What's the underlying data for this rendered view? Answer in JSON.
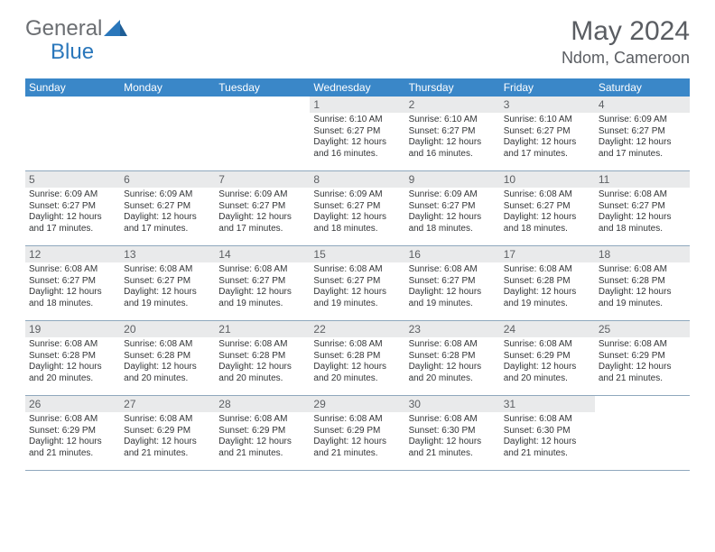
{
  "brand": {
    "text_general": "General",
    "text_blue": "Blue",
    "logo_color": "#2a77bb",
    "text_color_gray": "#6b6e72"
  },
  "title": {
    "month_year": "May 2024",
    "location": "Ndom, Cameroon",
    "title_fontsize": 30,
    "location_fontsize": 18,
    "color": "#5a5d62"
  },
  "colors": {
    "header_bg": "#3a87c8",
    "header_text": "#ffffff",
    "daynum_bg": "#e9eaeb",
    "daynum_text": "#5c5f63",
    "body_text": "#333537",
    "divider": "#8fa8bd",
    "page_bg": "#ffffff"
  },
  "weekdays": [
    "Sunday",
    "Monday",
    "Tuesday",
    "Wednesday",
    "Thursday",
    "Friday",
    "Saturday"
  ],
  "weeks": [
    [
      {
        "n": "",
        "sr": "",
        "ss": "",
        "dl": ""
      },
      {
        "n": "",
        "sr": "",
        "ss": "",
        "dl": ""
      },
      {
        "n": "",
        "sr": "",
        "ss": "",
        "dl": ""
      },
      {
        "n": "1",
        "sr": "Sunrise: 6:10 AM",
        "ss": "Sunset: 6:27 PM",
        "dl": "Daylight: 12 hours and 16 minutes."
      },
      {
        "n": "2",
        "sr": "Sunrise: 6:10 AM",
        "ss": "Sunset: 6:27 PM",
        "dl": "Daylight: 12 hours and 16 minutes."
      },
      {
        "n": "3",
        "sr": "Sunrise: 6:10 AM",
        "ss": "Sunset: 6:27 PM",
        "dl": "Daylight: 12 hours and 17 minutes."
      },
      {
        "n": "4",
        "sr": "Sunrise: 6:09 AM",
        "ss": "Sunset: 6:27 PM",
        "dl": "Daylight: 12 hours and 17 minutes."
      }
    ],
    [
      {
        "n": "5",
        "sr": "Sunrise: 6:09 AM",
        "ss": "Sunset: 6:27 PM",
        "dl": "Daylight: 12 hours and 17 minutes."
      },
      {
        "n": "6",
        "sr": "Sunrise: 6:09 AM",
        "ss": "Sunset: 6:27 PM",
        "dl": "Daylight: 12 hours and 17 minutes."
      },
      {
        "n": "7",
        "sr": "Sunrise: 6:09 AM",
        "ss": "Sunset: 6:27 PM",
        "dl": "Daylight: 12 hours and 17 minutes."
      },
      {
        "n": "8",
        "sr": "Sunrise: 6:09 AM",
        "ss": "Sunset: 6:27 PM",
        "dl": "Daylight: 12 hours and 18 minutes."
      },
      {
        "n": "9",
        "sr": "Sunrise: 6:09 AM",
        "ss": "Sunset: 6:27 PM",
        "dl": "Daylight: 12 hours and 18 minutes."
      },
      {
        "n": "10",
        "sr": "Sunrise: 6:08 AM",
        "ss": "Sunset: 6:27 PM",
        "dl": "Daylight: 12 hours and 18 minutes."
      },
      {
        "n": "11",
        "sr": "Sunrise: 6:08 AM",
        "ss": "Sunset: 6:27 PM",
        "dl": "Daylight: 12 hours and 18 minutes."
      }
    ],
    [
      {
        "n": "12",
        "sr": "Sunrise: 6:08 AM",
        "ss": "Sunset: 6:27 PM",
        "dl": "Daylight: 12 hours and 18 minutes."
      },
      {
        "n": "13",
        "sr": "Sunrise: 6:08 AM",
        "ss": "Sunset: 6:27 PM",
        "dl": "Daylight: 12 hours and 19 minutes."
      },
      {
        "n": "14",
        "sr": "Sunrise: 6:08 AM",
        "ss": "Sunset: 6:27 PM",
        "dl": "Daylight: 12 hours and 19 minutes."
      },
      {
        "n": "15",
        "sr": "Sunrise: 6:08 AM",
        "ss": "Sunset: 6:27 PM",
        "dl": "Daylight: 12 hours and 19 minutes."
      },
      {
        "n": "16",
        "sr": "Sunrise: 6:08 AM",
        "ss": "Sunset: 6:27 PM",
        "dl": "Daylight: 12 hours and 19 minutes."
      },
      {
        "n": "17",
        "sr": "Sunrise: 6:08 AM",
        "ss": "Sunset: 6:28 PM",
        "dl": "Daylight: 12 hours and 19 minutes."
      },
      {
        "n": "18",
        "sr": "Sunrise: 6:08 AM",
        "ss": "Sunset: 6:28 PM",
        "dl": "Daylight: 12 hours and 19 minutes."
      }
    ],
    [
      {
        "n": "19",
        "sr": "Sunrise: 6:08 AM",
        "ss": "Sunset: 6:28 PM",
        "dl": "Daylight: 12 hours and 20 minutes."
      },
      {
        "n": "20",
        "sr": "Sunrise: 6:08 AM",
        "ss": "Sunset: 6:28 PM",
        "dl": "Daylight: 12 hours and 20 minutes."
      },
      {
        "n": "21",
        "sr": "Sunrise: 6:08 AM",
        "ss": "Sunset: 6:28 PM",
        "dl": "Daylight: 12 hours and 20 minutes."
      },
      {
        "n": "22",
        "sr": "Sunrise: 6:08 AM",
        "ss": "Sunset: 6:28 PM",
        "dl": "Daylight: 12 hours and 20 minutes."
      },
      {
        "n": "23",
        "sr": "Sunrise: 6:08 AM",
        "ss": "Sunset: 6:28 PM",
        "dl": "Daylight: 12 hours and 20 minutes."
      },
      {
        "n": "24",
        "sr": "Sunrise: 6:08 AM",
        "ss": "Sunset: 6:29 PM",
        "dl": "Daylight: 12 hours and 20 minutes."
      },
      {
        "n": "25",
        "sr": "Sunrise: 6:08 AM",
        "ss": "Sunset: 6:29 PM",
        "dl": "Daylight: 12 hours and 21 minutes."
      }
    ],
    [
      {
        "n": "26",
        "sr": "Sunrise: 6:08 AM",
        "ss": "Sunset: 6:29 PM",
        "dl": "Daylight: 12 hours and 21 minutes."
      },
      {
        "n": "27",
        "sr": "Sunrise: 6:08 AM",
        "ss": "Sunset: 6:29 PM",
        "dl": "Daylight: 12 hours and 21 minutes."
      },
      {
        "n": "28",
        "sr": "Sunrise: 6:08 AM",
        "ss": "Sunset: 6:29 PM",
        "dl": "Daylight: 12 hours and 21 minutes."
      },
      {
        "n": "29",
        "sr": "Sunrise: 6:08 AM",
        "ss": "Sunset: 6:29 PM",
        "dl": "Daylight: 12 hours and 21 minutes."
      },
      {
        "n": "30",
        "sr": "Sunrise: 6:08 AM",
        "ss": "Sunset: 6:30 PM",
        "dl": "Daylight: 12 hours and 21 minutes."
      },
      {
        "n": "31",
        "sr": "Sunrise: 6:08 AM",
        "ss": "Sunset: 6:30 PM",
        "dl": "Daylight: 12 hours and 21 minutes."
      },
      {
        "n": "",
        "sr": "",
        "ss": "",
        "dl": ""
      }
    ]
  ]
}
